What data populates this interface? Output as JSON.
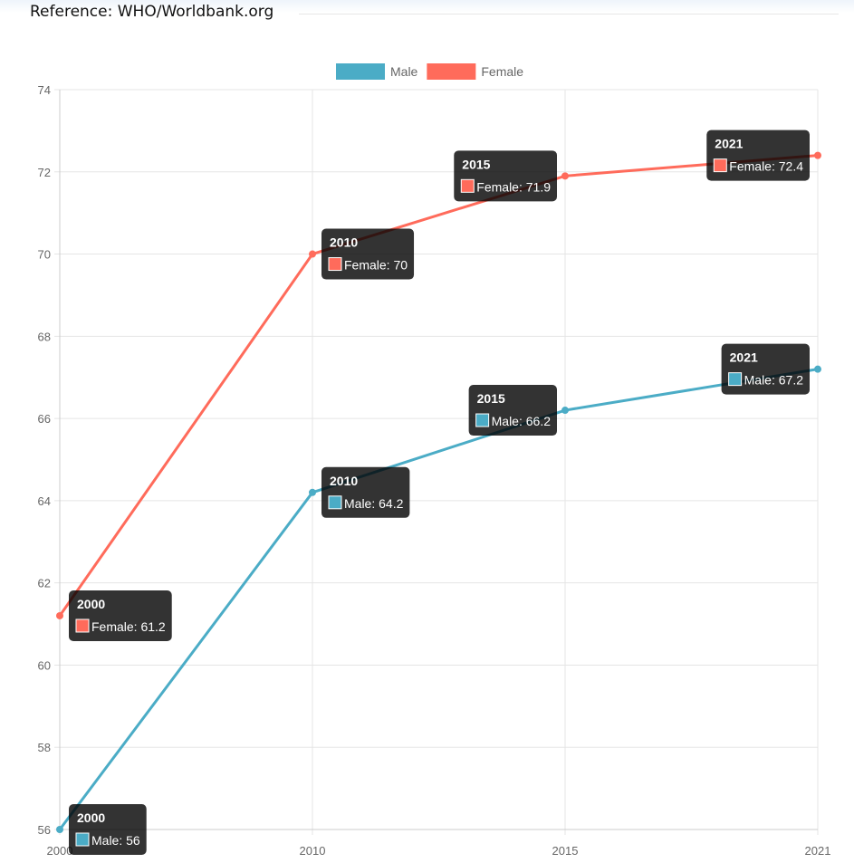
{
  "reference": "Reference: WHO/Worldbank.org",
  "chart_data": {
    "type": "line",
    "categories": [
      "2000",
      "2010",
      "2015",
      "2021"
    ],
    "series": [
      {
        "name": "Male",
        "values": [
          56,
          64.2,
          66.2,
          67.2
        ],
        "color": "#4bacc6"
      },
      {
        "name": "Female",
        "values": [
          61.2,
          70,
          71.9,
          72.4
        ],
        "color": "#ff6b5b"
      }
    ],
    "ylim": [
      56,
      74
    ],
    "yticks": [
      56,
      58,
      60,
      62,
      64,
      66,
      68,
      70,
      72,
      74
    ],
    "grid": true,
    "legend_position": "top",
    "tooltips_shown": "all points",
    "title": "",
    "xlabel": "",
    "ylabel": ""
  }
}
